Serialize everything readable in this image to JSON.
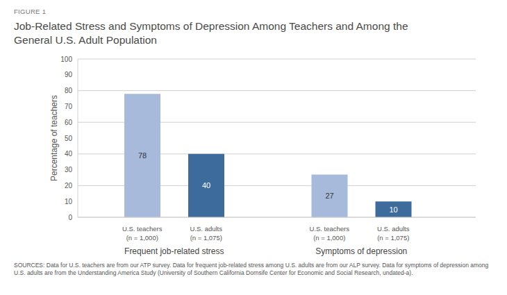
{
  "chart_data": {
    "type": "bar",
    "figure_label": "FIGURE 1",
    "title": "Job-Related Stress and Symptoms of Depression Among Teachers and Among the General U.S. Adult Population",
    "ylabel": "Percentage of teachers",
    "categories": [
      "Frequent job-related stress",
      "Symptoms of depression"
    ],
    "series": [
      {
        "name": "U.S. teachers\n(n = 1,000)",
        "color": "#a7badb",
        "values": [
          78,
          27
        ]
      },
      {
        "name": "U.S. adults\n(n = 1,075)",
        "color": "#3d6c9c",
        "values": [
          40,
          10
        ]
      }
    ],
    "ylim": [
      0,
      100
    ],
    "yticks": [
      0,
      10,
      20,
      30,
      40,
      50,
      60,
      70,
      80,
      90,
      100
    ],
    "grid": true,
    "data_labels": true,
    "source": "SOURCES: Data for U.S. teachers are from our ATP survey. Data for frequent job-related stress among U.S. adults are from our ALP survey. Data for symptoms of depression among U.S. adults are from the Understanding America Study (University of Southern California Dornsife Center for Economic and Social Research, undated-a)."
  }
}
